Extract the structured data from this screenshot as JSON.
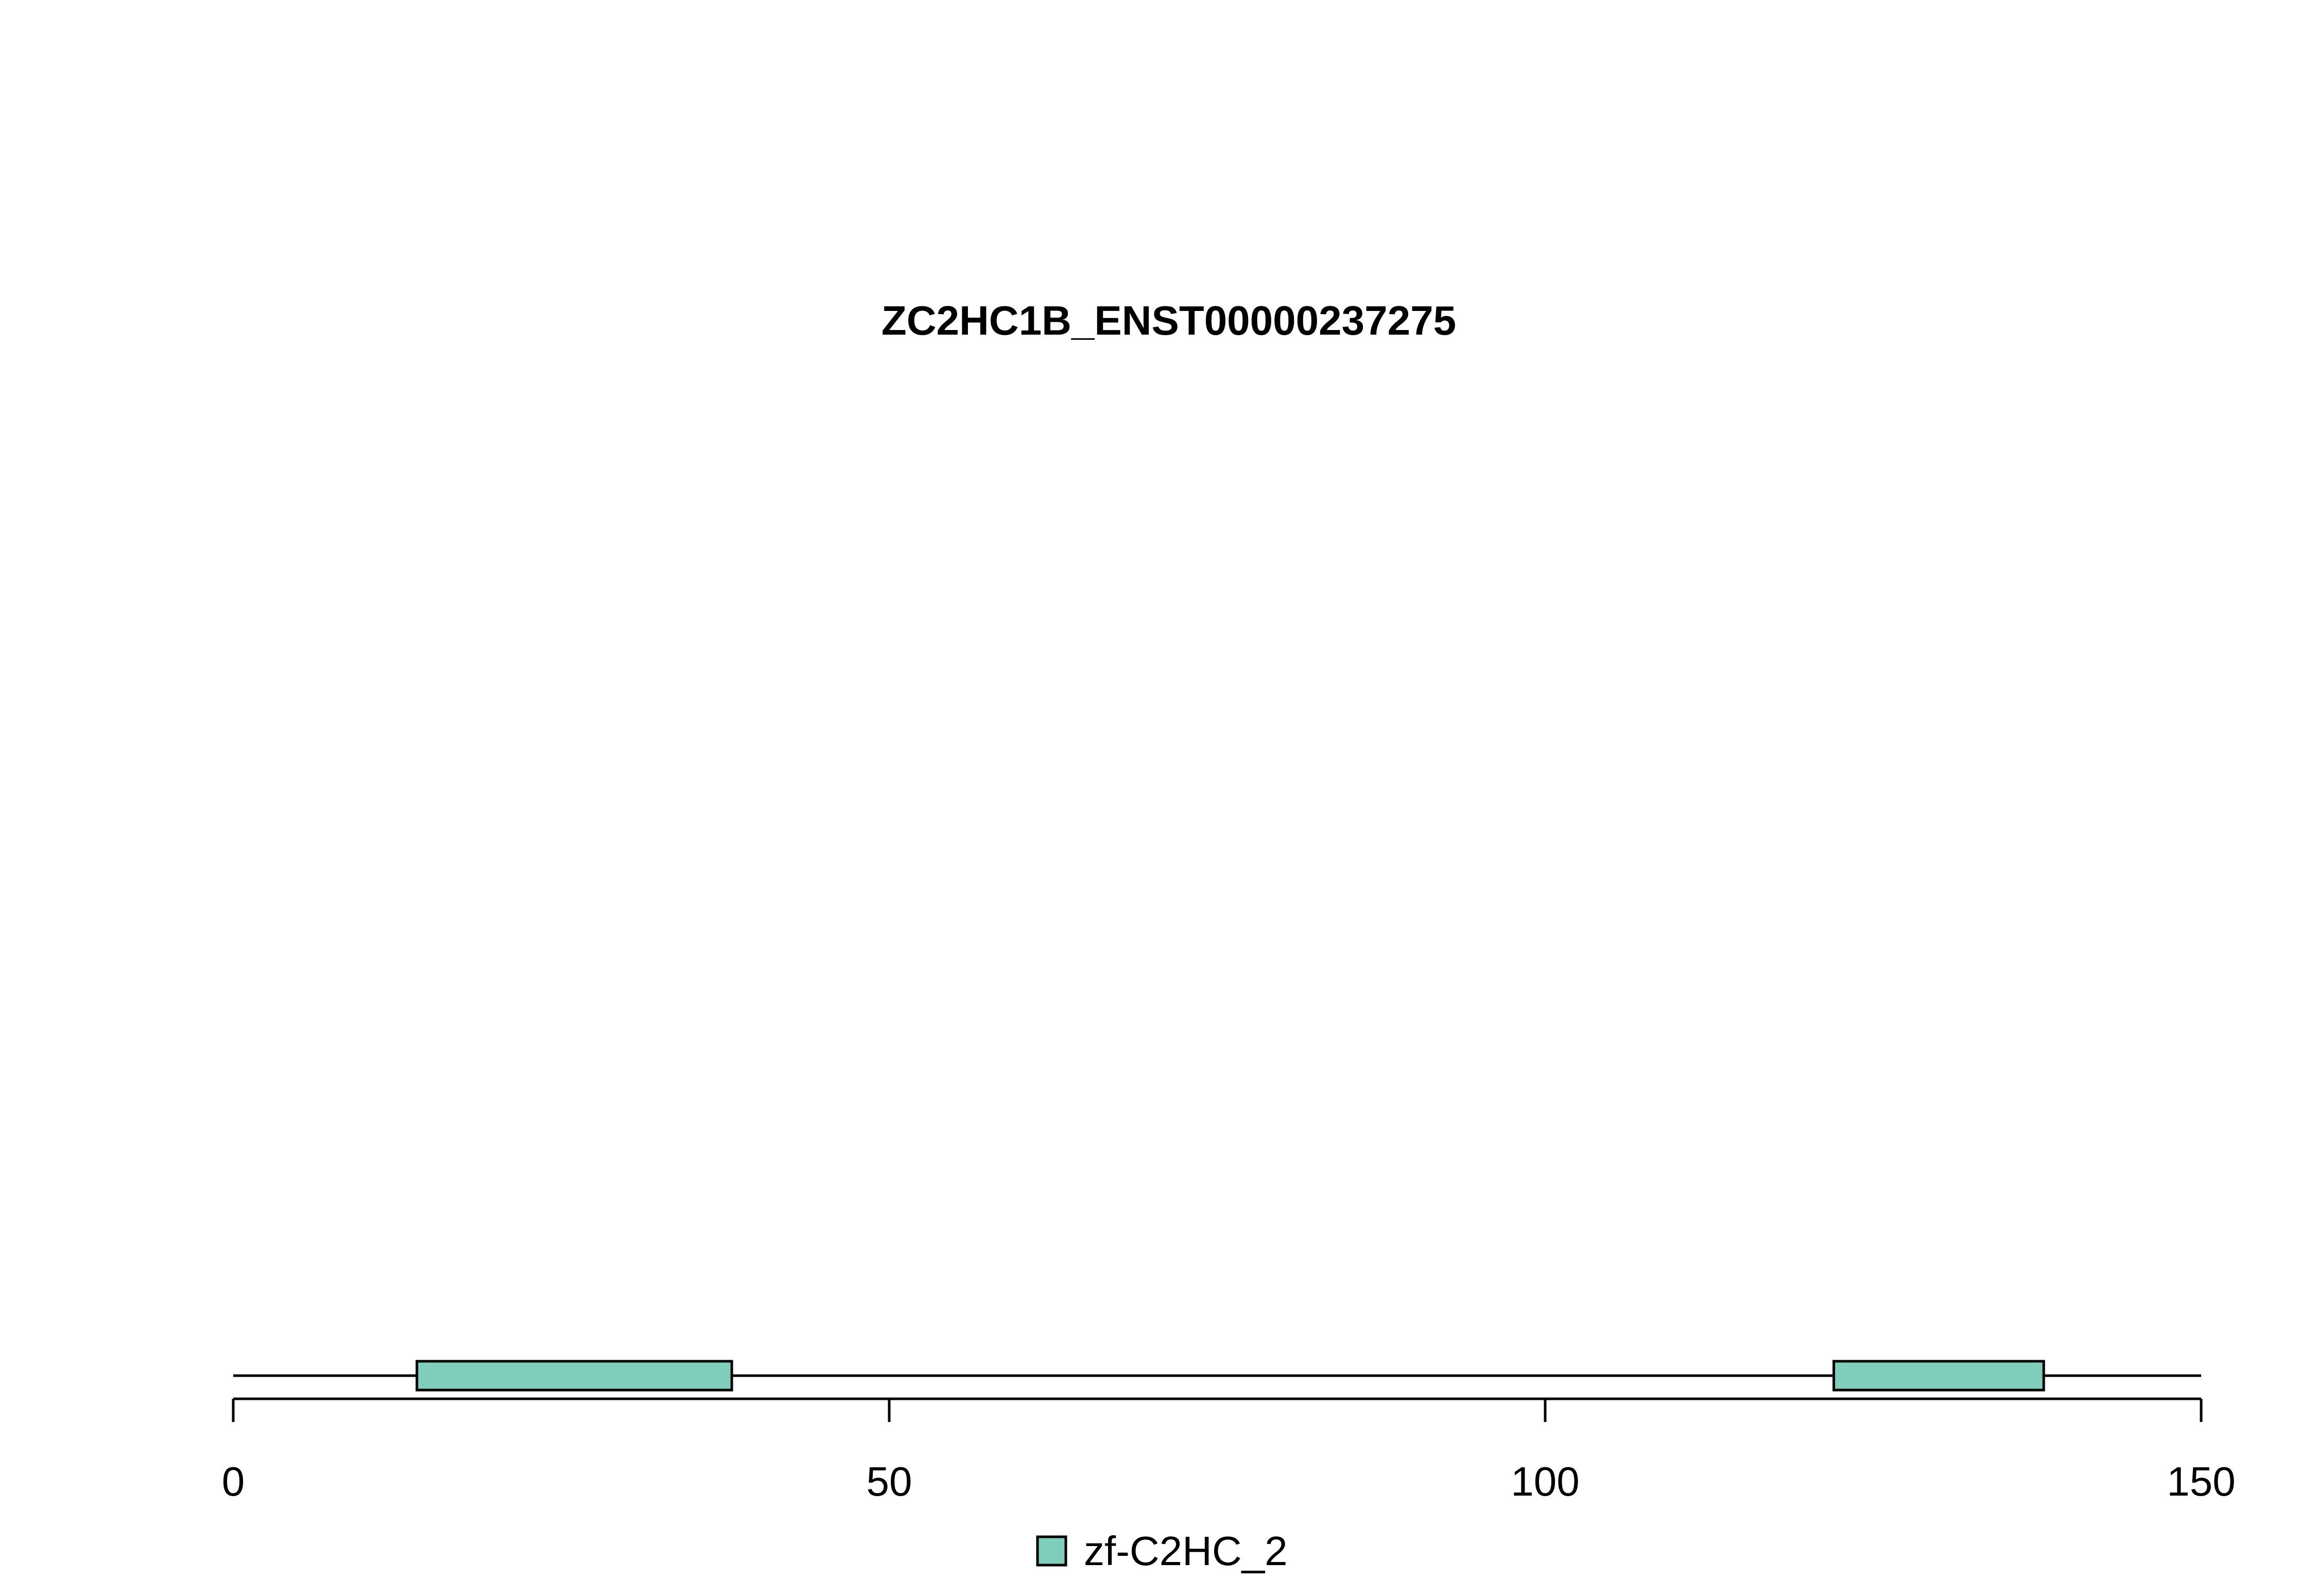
{
  "chart_data": {
    "type": "bar",
    "title": "ZC2HC1B_ENST00000237275",
    "xlabel": "",
    "ylabel": "",
    "xlim": [
      0,
      150
    ],
    "x_ticks": [
      0,
      50,
      100,
      150
    ],
    "x_tick_labels": [
      "0",
      "50",
      "100",
      "150"
    ],
    "protein_length": 150,
    "domains": [
      {
        "name": "zf-C2HC_2",
        "start": 14,
        "end": 38,
        "color": "#7fcdbb"
      },
      {
        "name": "zf-C2HC_2",
        "start": 122,
        "end": 138,
        "color": "#7fcdbb"
      }
    ],
    "legend": {
      "position": "bottom-center",
      "entries": [
        {
          "label": "zf-C2HC_2",
          "color": "#7fcdbb"
        }
      ]
    },
    "grid": false
  }
}
